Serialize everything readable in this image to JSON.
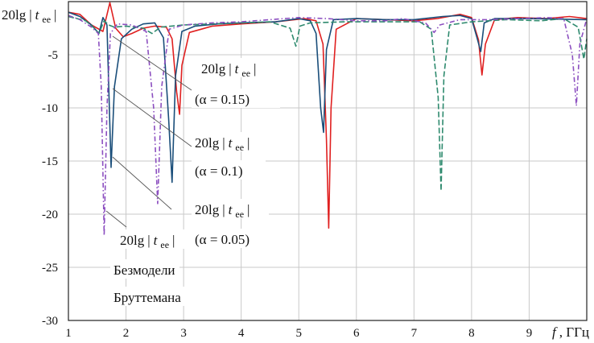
{
  "chart_data": {
    "type": "line",
    "title": "",
    "xlabel": "f, ГГц",
    "ylabel": "20lg|tee|",
    "xlim": [
      1,
      10
    ],
    "ylim": [
      -30,
      0
    ],
    "grid": true,
    "xticks": [
      "1",
      "2",
      "3",
      "4",
      "5",
      "6",
      "7",
      "8",
      "9"
    ],
    "yticks": [
      "-5",
      "-10",
      "-15",
      "-20",
      "-25",
      "-30"
    ],
    "axis_labels": {
      "y": {
        "base": "20lg",
        "var": "t",
        "sub": "ee"
      },
      "x": {
        "var": "f",
        "unit": ", ГГц"
      }
    },
    "annotations": [
      {
        "expr": "20lg|tee|",
        "base": "20lg",
        "var": "t",
        "sub": "ee",
        "param": "(α = 0.15)"
      },
      {
        "expr": "20lg|tee|",
        "base": "20lg",
        "var": "t",
        "sub": "ee",
        "param": "(α = 0.1)"
      },
      {
        "expr": "20lg|tee|",
        "base": "20lg",
        "var": "t",
        "sub": "ee",
        "param": "(α = 0.05)"
      },
      {
        "expr": "20lg|tee|",
        "base": "20lg",
        "var": "t",
        "sub": "ee",
        "line1": "Безмодели",
        "line2": "Бруттемана"
      }
    ],
    "series": [
      {
        "color": "#e02020",
        "dash": "",
        "points": [
          [
            1.0,
            -1.0
          ],
          [
            1.2,
            -1.2
          ],
          [
            1.4,
            -2.2
          ],
          [
            1.6,
            -2.8
          ],
          [
            1.72,
            -0.1
          ],
          [
            1.82,
            -2.5
          ],
          [
            1.95,
            -3.3
          ],
          [
            2.1,
            -3.0
          ],
          [
            2.3,
            -2.5
          ],
          [
            2.5,
            -2.3
          ],
          [
            2.7,
            -2.4
          ],
          [
            2.8,
            -3.5
          ],
          [
            2.88,
            -8.5
          ],
          [
            2.93,
            -10.6
          ],
          [
            2.97,
            -6.0
          ],
          [
            3.1,
            -2.9
          ],
          [
            3.5,
            -2.3
          ],
          [
            4.0,
            -2.1
          ],
          [
            4.6,
            -1.9
          ],
          [
            5.1,
            -1.6
          ],
          [
            5.3,
            -1.8
          ],
          [
            5.42,
            -4.0
          ],
          [
            5.48,
            -13.0
          ],
          [
            5.52,
            -21.3
          ],
          [
            5.56,
            -10.0
          ],
          [
            5.65,
            -2.6
          ],
          [
            6.0,
            -1.6
          ],
          [
            6.5,
            -1.7
          ],
          [
            7.0,
            -1.8
          ],
          [
            7.4,
            -1.6
          ],
          [
            7.8,
            -1.2
          ],
          [
            8.0,
            -1.5
          ],
          [
            8.12,
            -3.6
          ],
          [
            8.18,
            -6.9
          ],
          [
            8.24,
            -4.0
          ],
          [
            8.4,
            -1.7
          ],
          [
            8.8,
            -1.5
          ],
          [
            9.3,
            -1.6
          ],
          [
            9.7,
            -1.4
          ],
          [
            10.0,
            -1.6
          ]
        ]
      },
      {
        "color": "#1a4e7a",
        "dash": "",
        "points": [
          [
            1.0,
            -1.0
          ],
          [
            1.2,
            -1.4
          ],
          [
            1.4,
            -2.2
          ],
          [
            1.53,
            -3.0
          ],
          [
            1.6,
            -1.5
          ],
          [
            1.67,
            -2.2
          ],
          [
            1.74,
            -15.6
          ],
          [
            1.8,
            -8.0
          ],
          [
            1.92,
            -3.5
          ],
          [
            2.1,
            -2.6
          ],
          [
            2.3,
            -2.1
          ],
          [
            2.5,
            -2.0
          ],
          [
            2.65,
            -3.4
          ],
          [
            2.74,
            -11.0
          ],
          [
            2.8,
            -17.0
          ],
          [
            2.86,
            -7.0
          ],
          [
            2.97,
            -2.8
          ],
          [
            3.2,
            -2.3
          ],
          [
            3.6,
            -2.1
          ],
          [
            4.0,
            -2.0
          ],
          [
            4.6,
            -1.9
          ],
          [
            5.0,
            -1.6
          ],
          [
            5.2,
            -1.8
          ],
          [
            5.3,
            -3.0
          ],
          [
            5.38,
            -10.0
          ],
          [
            5.43,
            -12.3
          ],
          [
            5.48,
            -4.5
          ],
          [
            5.6,
            -1.7
          ],
          [
            6.0,
            -1.6
          ],
          [
            6.5,
            -1.7
          ],
          [
            7.0,
            -1.7
          ],
          [
            7.5,
            -1.4
          ],
          [
            7.8,
            -1.3
          ],
          [
            8.0,
            -1.6
          ],
          [
            8.1,
            -3.5
          ],
          [
            8.16,
            -4.7
          ],
          [
            8.22,
            -2.0
          ],
          [
            8.4,
            -1.6
          ],
          [
            9.0,
            -1.6
          ],
          [
            10.0,
            -1.7
          ]
        ]
      },
      {
        "color": "#2e8a6e",
        "dash": "7,3",
        "points": [
          [
            1.0,
            -1.4
          ],
          [
            1.3,
            -1.8
          ],
          [
            1.45,
            -2.5
          ],
          [
            1.53,
            -3.0
          ],
          [
            1.62,
            -1.8
          ],
          [
            1.7,
            -2.2
          ],
          [
            1.8,
            -2.4
          ],
          [
            2.0,
            -2.3
          ],
          [
            2.3,
            -2.5
          ],
          [
            2.45,
            -3.0
          ],
          [
            2.6,
            -2.4
          ],
          [
            3.0,
            -2.2
          ],
          [
            3.5,
            -2.1
          ],
          [
            4.0,
            -2.0
          ],
          [
            4.5,
            -1.9
          ],
          [
            4.85,
            -2.5
          ],
          [
            4.95,
            -4.2
          ],
          [
            5.02,
            -2.3
          ],
          [
            5.2,
            -2.0
          ],
          [
            5.8,
            -1.9
          ],
          [
            6.5,
            -1.9
          ],
          [
            7.1,
            -1.9
          ],
          [
            7.3,
            -2.6
          ],
          [
            7.42,
            -9.0
          ],
          [
            7.47,
            -17.8
          ],
          [
            7.52,
            -7.0
          ],
          [
            7.62,
            -2.2
          ],
          [
            8.0,
            -1.9
          ],
          [
            8.6,
            -1.7
          ],
          [
            9.2,
            -1.8
          ],
          [
            9.6,
            -1.6
          ],
          [
            9.85,
            -2.4
          ],
          [
            9.95,
            -5.4
          ],
          [
            10.0,
            -3.5
          ]
        ]
      },
      {
        "color": "#8c4fc0",
        "dash": "6,3,1.5,3",
        "points": [
          [
            1.0,
            -1.3
          ],
          [
            1.2,
            -1.7
          ],
          [
            1.4,
            -2.4
          ],
          [
            1.52,
            -3.0
          ],
          [
            1.57,
            -8.0
          ],
          [
            1.62,
            -22.0
          ],
          [
            1.67,
            -10.0
          ],
          [
            1.73,
            -3.0
          ],
          [
            1.85,
            -2.1
          ],
          [
            2.1,
            -2.2
          ],
          [
            2.35,
            -2.8
          ],
          [
            2.48,
            -10.0
          ],
          [
            2.55,
            -19.0
          ],
          [
            2.62,
            -8.0
          ],
          [
            2.75,
            -2.6
          ],
          [
            3.0,
            -2.2
          ],
          [
            3.5,
            -2.0
          ],
          [
            4.0,
            -1.9
          ],
          [
            4.5,
            -1.7
          ],
          [
            5.0,
            -1.5
          ],
          [
            5.5,
            -1.6
          ],
          [
            6.0,
            -1.8
          ],
          [
            6.5,
            -1.8
          ],
          [
            6.8,
            -1.6
          ],
          [
            7.2,
            -2.0
          ],
          [
            7.35,
            -2.9
          ],
          [
            7.45,
            -2.2
          ],
          [
            7.8,
            -1.7
          ],
          [
            8.3,
            -1.7
          ],
          [
            8.8,
            -1.6
          ],
          [
            9.3,
            -1.5
          ],
          [
            9.6,
            -1.6
          ],
          [
            9.75,
            -5.0
          ],
          [
            9.82,
            -9.8
          ],
          [
            9.88,
            -4.0
          ],
          [
            10.0,
            -1.6
          ]
        ]
      }
    ]
  }
}
